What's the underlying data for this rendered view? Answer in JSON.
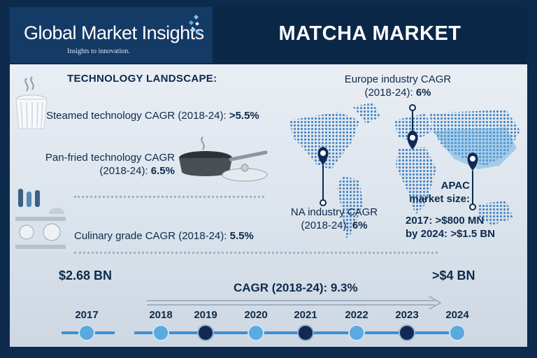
{
  "header": {
    "brand": "Global Market Insights",
    "tagline": "Insights to innovation.",
    "title": "MATCHA MARKET"
  },
  "landscape": {
    "heading": "TECHNOLOGY LANDSCAPE:",
    "steamed_label": "Steamed technology CAGR (2018-24): ",
    "steamed_value": ">5.5%",
    "panfried_line1": "Pan-fried technology CAGR",
    "panfried_line2": "(2018-24): ",
    "panfried_value": "6.5%",
    "culinary_label": "Culinary grade CAGR (2018-24): ",
    "culinary_value": "5.5%"
  },
  "regions": {
    "europe_line1": "Europe industry CAGR",
    "europe_line2": "(2018-24): ",
    "europe_value": "6%",
    "na_line1": "NA industry CAGR",
    "na_line2": "(2018-24): ",
    "na_value": "6%",
    "apac_line1": "APAC",
    "apac_line2": "market size:",
    "apac_2017": "2017: >$800 MN",
    "apac_2024": "by 2024: >$1.5 BN"
  },
  "timeline": {
    "start_value": "$2.68 BN",
    "end_value": ">$4 BN",
    "cagr": "CAGR (2018-24): 9.3%",
    "years": [
      "2017",
      "2018",
      "2019",
      "2020",
      "2021",
      "2022",
      "2023",
      "2024"
    ]
  },
  "colors": {
    "navy": "#0e2a4d",
    "accent_blue": "#3f8fd0",
    "dark_dot": "#0f2a55",
    "light_dot": "#5aa9df"
  }
}
